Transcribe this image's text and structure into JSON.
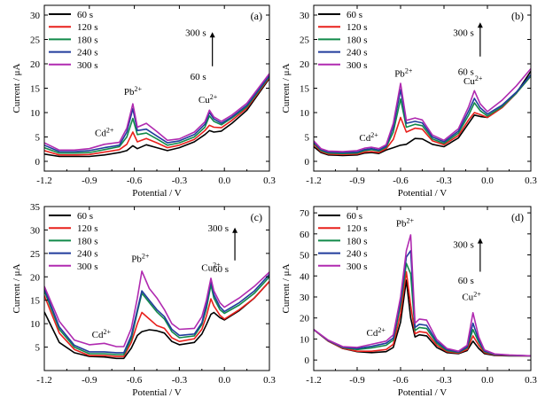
{
  "colors": {
    "60 s": "#000000",
    "120 s": "#e8201c",
    "180 s": "#118a4a",
    "240 s": "#203c9c",
    "300 s": "#b02ab0"
  },
  "chart_data": [
    {
      "type": "line",
      "panel_label": "(a)",
      "xlabel": "Potential / V",
      "ylabel": "Current / μA",
      "xlim": [
        -1.2,
        0.3
      ],
      "ylim": [
        -2,
        32
      ],
      "xticks": [
        -1.2,
        -0.9,
        -0.6,
        -0.3,
        0.0,
        0.3
      ],
      "xtick_labels": [
        "-1.2",
        "-0.9",
        "-0.6",
        "-0.3",
        "0.0",
        "0.3"
      ],
      "yticks": [
        0,
        5,
        10,
        15,
        20,
        25,
        30
      ],
      "ytick_labels": [
        "0",
        "5",
        "10",
        "15",
        "20",
        "25",
        "30"
      ],
      "legend_position": "top-left",
      "arrow": {
        "top_label": "300 s",
        "bottom_label": "60 s",
        "x": -0.08,
        "y_from": 19.5,
        "y_to": 26.5,
        "top_label_y": 26.5,
        "bottom_label_y": 17.5
      },
      "annotations": [
        {
          "text": "Cd",
          "sup": "2+",
          "x": -0.8,
          "y": 5.2
        },
        {
          "text": "Pb",
          "sup": "2+",
          "x": -0.61,
          "y": 13.6
        },
        {
          "text": "Cu",
          "sup": "2+",
          "x": -0.11,
          "y": 12.0
        }
      ],
      "x": [
        -1.2,
        -1.1,
        -1.0,
        -0.9,
        -0.8,
        -0.7,
        -0.65,
        -0.61,
        -0.58,
        -0.52,
        -0.45,
        -0.38,
        -0.3,
        -0.2,
        -0.13,
        -0.1,
        -0.07,
        -0.02,
        0.05,
        0.15,
        0.3
      ],
      "series": [
        {
          "name": "60 s",
          "values": [
            1.5,
            1.0,
            1.0,
            1.0,
            1.3,
            1.8,
            2.2,
            3.2,
            2.6,
            3.4,
            2.8,
            2.2,
            2.8,
            4.0,
            5.5,
            6.3,
            6.0,
            6.2,
            7.8,
            10.5,
            17.0
          ]
        },
        {
          "name": "120 s",
          "values": [
            2.2,
            1.3,
            1.3,
            1.4,
            1.9,
            2.4,
            3.5,
            6.0,
            4.0,
            4.7,
            3.8,
            2.8,
            3.3,
            4.5,
            6.3,
            7.4,
            7.0,
            6.9,
            8.4,
            10.9,
            17.2
          ]
        },
        {
          "name": "180 s",
          "values": [
            2.8,
            1.7,
            1.7,
            1.8,
            2.4,
            3.0,
            5.0,
            8.8,
            5.5,
            5.8,
            4.6,
            3.3,
            3.8,
            5.0,
            7.0,
            9.3,
            8.2,
            7.5,
            8.9,
            11.2,
            17.4
          ]
        },
        {
          "name": "240 s",
          "values": [
            3.3,
            2.0,
            2.0,
            2.2,
            2.8,
            3.3,
            6.0,
            10.8,
            6.3,
            6.6,
            5.2,
            3.8,
            4.2,
            5.5,
            7.6,
            10.0,
            8.7,
            7.8,
            9.1,
            11.5,
            17.6
          ]
        },
        {
          "name": "300 s",
          "values": [
            3.8,
            2.3,
            2.3,
            2.6,
            3.5,
            3.9,
            6.8,
            11.8,
            7.0,
            7.8,
            6.1,
            4.3,
            4.6,
            6.0,
            8.1,
            10.5,
            9.1,
            8.2,
            9.5,
            11.9,
            18.0
          ]
        }
      ]
    },
    {
      "type": "line",
      "panel_label": "(b)",
      "xlabel": "Potential / V",
      "ylabel": "Current / μA",
      "xlim": [
        -1.2,
        0.3
      ],
      "ylim": [
        -2,
        32
      ],
      "xticks": [
        -1.2,
        -0.9,
        -0.6,
        -0.3,
        0.0,
        0.3
      ],
      "xtick_labels": [
        "-1.2",
        "-0.9",
        "-0.6",
        "-0.3",
        "0.0",
        "0.3"
      ],
      "yticks": [
        0,
        5,
        10,
        15,
        20,
        25,
        30
      ],
      "ytick_labels": [
        "0",
        "5",
        "10",
        "15",
        "20",
        "25",
        "30"
      ],
      "legend_position": "top-left",
      "arrow": {
        "top_label": "300 s",
        "bottom_label": "60 s",
        "x": -0.05,
        "y_from": 21.5,
        "y_to": 28.5,
        "top_label_y": 26.5,
        "bottom_label_y": 18.5
      },
      "annotations": [
        {
          "text": "Cd",
          "sup": "2+",
          "x": -0.82,
          "y": 4.2
        },
        {
          "text": "Pb",
          "sup": "2+",
          "x": -0.58,
          "y": 17.4
        },
        {
          "text": "Cu",
          "sup": "2+",
          "x": -0.1,
          "y": 15.8
        }
      ],
      "x": [
        -1.2,
        -1.15,
        -1.1,
        -1.0,
        -0.9,
        -0.85,
        -0.8,
        -0.75,
        -0.7,
        -0.65,
        -0.6,
        -0.56,
        -0.5,
        -0.45,
        -0.38,
        -0.3,
        -0.2,
        -0.13,
        -0.09,
        -0.05,
        0.0,
        0.1,
        0.2,
        0.3
      ],
      "series": [
        {
          "name": "60 s",
          "values": [
            3.0,
            1.8,
            1.3,
            1.2,
            1.3,
            1.7,
            1.8,
            1.6,
            2.3,
            2.8,
            3.3,
            3.5,
            4.7,
            4.6,
            3.5,
            3.0,
            4.8,
            7.8,
            9.5,
            9.2,
            9.0,
            11.0,
            14.0,
            18.5
          ]
        },
        {
          "name": "120 s",
          "values": [
            3.5,
            2.0,
            1.5,
            1.4,
            1.5,
            1.9,
            2.0,
            1.8,
            2.6,
            4.5,
            9.0,
            6.0,
            6.8,
            6.6,
            4.2,
            3.4,
            5.3,
            8.5,
            10.0,
            9.6,
            9.0,
            11.0,
            14.0,
            17.5
          ]
        },
        {
          "name": "180 s",
          "values": [
            3.8,
            2.2,
            1.7,
            1.6,
            1.7,
            2.2,
            2.4,
            2.1,
            2.9,
            6.0,
            12.8,
            7.0,
            7.6,
            7.3,
            4.6,
            3.7,
            5.8,
            9.5,
            12.0,
            10.4,
            9.3,
            11.2,
            14.0,
            17.5
          ]
        },
        {
          "name": "240 s",
          "values": [
            4.0,
            2.4,
            1.9,
            1.8,
            1.9,
            2.4,
            2.6,
            2.3,
            3.1,
            7.0,
            14.7,
            7.8,
            8.2,
            7.9,
            5.0,
            4.0,
            6.2,
            10.3,
            12.9,
            11.0,
            9.7,
            11.5,
            14.2,
            17.8
          ]
        },
        {
          "name": "300 s",
          "values": [
            4.2,
            2.6,
            2.1,
            2.0,
            2.2,
            2.7,
            2.9,
            2.6,
            3.4,
            7.8,
            16.0,
            8.4,
            8.9,
            8.5,
            5.4,
            4.3,
            6.7,
            11.2,
            14.5,
            11.8,
            10.2,
            12.5,
            15.5,
            19.0
          ]
        }
      ]
    },
    {
      "type": "line",
      "panel_label": "(c)",
      "xlabel": "Potential / V",
      "ylabel": "Current / μA",
      "xlim": [
        -1.2,
        0.3
      ],
      "ylim": [
        0,
        35
      ],
      "xticks": [
        -1.2,
        -0.9,
        -0.6,
        -0.3,
        0.0,
        0.3
      ],
      "xtick_labels": [
        "-1.2",
        "-0.9",
        "-0.6",
        "-0.3",
        "0.0",
        "0.3"
      ],
      "yticks": [
        5,
        10,
        15,
        20,
        25,
        30,
        35
      ],
      "ytick_labels": [
        "5",
        "10",
        "15",
        "20",
        "25",
        "30",
        "35"
      ],
      "legend_position": "top-left",
      "arrow": {
        "top_label": "300 s",
        "bottom_label": "60 s",
        "x": 0.07,
        "y_from": 23.5,
        "y_to": 30.5,
        "top_label_y": 30.5,
        "bottom_label_y": 21.8
      },
      "annotations": [
        {
          "text": "Cd",
          "sup": "2+",
          "x": -0.82,
          "y": 7.0
        },
        {
          "text": "Pb",
          "sup": "2+",
          "x": -0.56,
          "y": 23.2
        },
        {
          "text": "Cu",
          "sup": "2+",
          "x": -0.09,
          "y": 21.3
        }
      ],
      "x": [
        -1.2,
        -1.1,
        -1.0,
        -0.9,
        -0.8,
        -0.72,
        -0.67,
        -0.62,
        -0.58,
        -0.55,
        -0.5,
        -0.45,
        -0.4,
        -0.35,
        -0.3,
        -0.2,
        -0.15,
        -0.12,
        -0.09,
        -0.07,
        -0.03,
        0.0,
        0.1,
        0.2,
        0.3
      ],
      "series": [
        {
          "name": "60 s",
          "values": [
            12.5,
            6.0,
            3.8,
            3.0,
            2.9,
            2.6,
            2.6,
            4.8,
            7.5,
            8.3,
            8.7,
            8.5,
            8.0,
            6.2,
            5.5,
            6.0,
            7.8,
            9.8,
            12.0,
            12.4,
            11.3,
            10.8,
            12.8,
            15.5,
            19.0
          ]
        },
        {
          "name": "120 s",
          "values": [
            16.0,
            8.0,
            4.5,
            3.2,
            3.2,
            3.0,
            3.0,
            6.0,
            10.0,
            12.4,
            11.0,
            9.6,
            9.0,
            7.0,
            6.2,
            6.8,
            8.8,
            11.6,
            15.3,
            13.8,
            11.8,
            11.0,
            13.0,
            15.5,
            19.0
          ]
        },
        {
          "name": "180 s",
          "values": [
            17.0,
            8.8,
            5.0,
            3.6,
            3.6,
            3.4,
            3.4,
            6.8,
            12.5,
            16.5,
            14.5,
            12.5,
            11.0,
            8.3,
            7.0,
            7.4,
            9.8,
            13.2,
            18.3,
            15.5,
            13.0,
            12.2,
            14.0,
            16.5,
            20.0
          ]
        },
        {
          "name": "240 s",
          "values": [
            17.5,
            9.3,
            5.4,
            4.0,
            4.0,
            3.8,
            3.8,
            7.5,
            13.0,
            17.0,
            15.0,
            13.0,
            11.5,
            8.8,
            7.5,
            7.8,
            10.2,
            14.0,
            19.2,
            16.2,
            13.6,
            12.6,
            14.5,
            17.0,
            20.5
          ]
        },
        {
          "name": "300 s",
          "values": [
            18.0,
            10.5,
            6.5,
            5.5,
            5.8,
            5.1,
            5.1,
            9.0,
            15.5,
            21.2,
            17.5,
            15.5,
            13.0,
            10.0,
            8.8,
            9.0,
            11.5,
            15.0,
            19.7,
            17.0,
            14.5,
            13.5,
            15.5,
            18.0,
            21.0
          ]
        }
      ]
    },
    {
      "type": "line",
      "panel_label": "(d)",
      "xlabel": "Potential / V",
      "ylabel": "Current / μA",
      "xlim": [
        -1.2,
        0.3
      ],
      "ylim": [
        -5,
        73
      ],
      "xticks": [
        -1.2,
        -0.9,
        -0.6,
        -0.3,
        0.0,
        0.3
      ],
      "xtick_labels": [
        "-1.2",
        "-0.9",
        "-0.6",
        "-0.3",
        "0.0",
        "0.3"
      ],
      "yticks": [
        0,
        10,
        20,
        30,
        40,
        50,
        60,
        70
      ],
      "ytick_labels": [
        "0",
        "10",
        "20",
        "30",
        "40",
        "50",
        "60",
        "70"
      ],
      "legend_position": "top-left",
      "arrow": {
        "top_label": "300 s",
        "bottom_label": "60 s",
        "x": -0.05,
        "y_from": 42.0,
        "y_to": 58.0,
        "top_label_y": 55.0,
        "bottom_label_y": 38.0
      },
      "annotations": [
        {
          "text": "Cd",
          "sup": "2+",
          "x": -0.77,
          "y": 11.5
        },
        {
          "text": "Pb",
          "sup": "2+",
          "x": -0.57,
          "y": 63.5
        },
        {
          "text": "Cu",
          "sup": "2+",
          "x": -0.11,
          "y": 28.5
        }
      ],
      "x": [
        -1.2,
        -1.1,
        -1.0,
        -0.9,
        -0.8,
        -0.7,
        -0.65,
        -0.6,
        -0.56,
        -0.53,
        -0.5,
        -0.47,
        -0.42,
        -0.35,
        -0.28,
        -0.2,
        -0.14,
        -0.1,
        -0.06,
        -0.02,
        0.05,
        0.15,
        0.3
      ],
      "series": [
        {
          "name": "60 s",
          "values": [
            14.5,
            9.0,
            5.5,
            4.0,
            3.5,
            4.0,
            6.0,
            18.0,
            38.0,
            20.0,
            11.0,
            12.0,
            11.5,
            6.0,
            3.5,
            3.0,
            4.5,
            9.0,
            5.5,
            3.0,
            2.2,
            2.0,
            2.0
          ]
        },
        {
          "name": "120 s",
          "values": [
            14.5,
            9.0,
            5.6,
            4.2,
            4.2,
            5.0,
            7.5,
            22.0,
            42.0,
            26.0,
            12.5,
            13.5,
            13.0,
            7.0,
            4.0,
            3.3,
            5.0,
            11.5,
            7.0,
            3.5,
            2.4,
            2.1,
            2.0
          ]
        },
        {
          "name": "180 s",
          "values": [
            14.5,
            9.2,
            5.9,
            5.0,
            5.8,
            7.0,
            9.5,
            26.0,
            46.0,
            41.0,
            14.0,
            15.5,
            15.0,
            8.0,
            4.5,
            3.6,
            5.8,
            14.5,
            8.5,
            4.0,
            2.6,
            2.2,
            2.0
          ]
        },
        {
          "name": "240 s",
          "values": [
            14.5,
            9.3,
            6.1,
            5.5,
            6.5,
            8.0,
            10.5,
            28.0,
            49.0,
            52.0,
            15.5,
            17.0,
            16.5,
            8.8,
            5.0,
            3.8,
            6.2,
            17.5,
            9.5,
            4.3,
            2.7,
            2.3,
            2.0
          ]
        },
        {
          "name": "300 s",
          "values": [
            14.5,
            9.5,
            6.4,
            6.0,
            7.5,
            9.0,
            12.0,
            30.0,
            52.0,
            59.5,
            17.5,
            19.5,
            19.0,
            9.8,
            5.5,
            4.2,
            7.0,
            22.5,
            11.0,
            4.8,
            2.9,
            2.4,
            2.0
          ]
        }
      ]
    }
  ]
}
